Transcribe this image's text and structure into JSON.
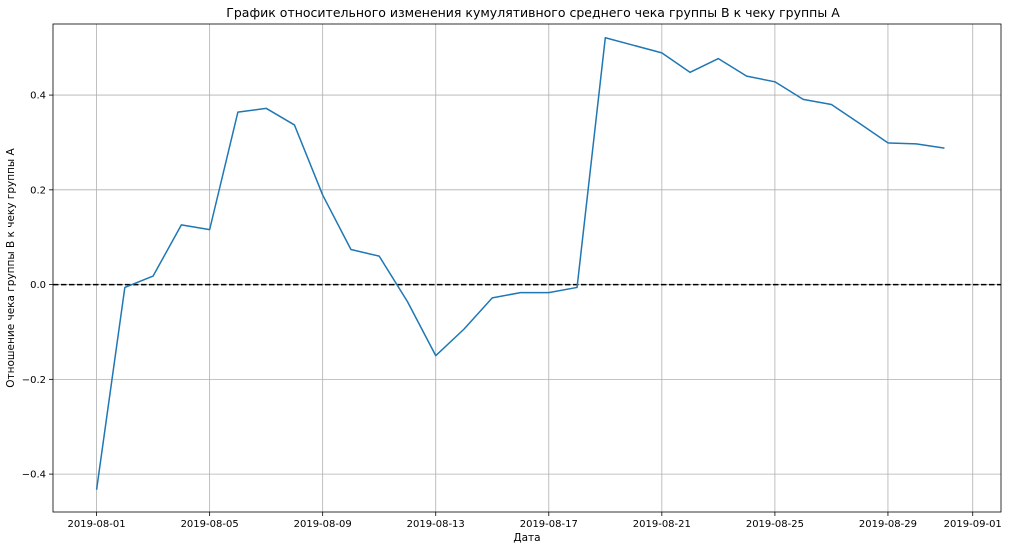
{
  "chart_data": {
    "type": "line",
    "title": "График относительного изменения кумулятивного среднего чека группы B к чеку группы A",
    "xlabel": "Дата",
    "ylabel": "Отношение чека группы B к чеку группы A",
    "x": [
      "2019-08-01",
      "2019-08-02",
      "2019-08-03",
      "2019-08-04",
      "2019-08-05",
      "2019-08-06",
      "2019-08-07",
      "2019-08-08",
      "2019-08-09",
      "2019-08-10",
      "2019-08-11",
      "2019-08-12",
      "2019-08-13",
      "2019-08-14",
      "2019-08-15",
      "2019-08-16",
      "2019-08-17",
      "2019-08-18",
      "2019-08-19",
      "2019-08-20",
      "2019-08-21",
      "2019-08-22",
      "2019-08-23",
      "2019-08-24",
      "2019-08-25",
      "2019-08-26",
      "2019-08-27",
      "2019-08-28",
      "2019-08-29",
      "2019-08-30",
      "2019-08-31"
    ],
    "series": [
      {
        "color": "#1f77b4",
        "values": [
          -0.433,
          -0.006,
          0.018,
          0.126,
          0.116,
          0.364,
          0.372,
          0.337,
          0.189,
          0.074,
          0.06,
          -0.036,
          -0.15,
          -0.094,
          -0.028,
          -0.017,
          -0.017,
          -0.006,
          0.521,
          0.505,
          0.489,
          0.448,
          0.477,
          0.44,
          0.428,
          0.391,
          0.38,
          0.34,
          0.299,
          0.297,
          0.288
        ]
      }
    ],
    "reference_line": {
      "y": 0,
      "style": "dashed",
      "color": "#000000"
    },
    "xticks": [
      "2019-08-01",
      "2019-08-05",
      "2019-08-09",
      "2019-08-13",
      "2019-08-17",
      "2019-08-21",
      "2019-08-25",
      "2019-08-29",
      "2019-09-01"
    ],
    "yticks": [
      "−0.4",
      "−0.2",
      "0.0",
      "0.2",
      "0.4"
    ],
    "ytick_values": [
      -0.4,
      -0.2,
      0.0,
      0.2,
      0.4
    ],
    "xlim": [
      "2019-07-30T11:00",
      "2019-09-02T00:00"
    ],
    "ylim": [
      -0.48,
      0.55
    ],
    "grid": true,
    "legend": "none"
  }
}
